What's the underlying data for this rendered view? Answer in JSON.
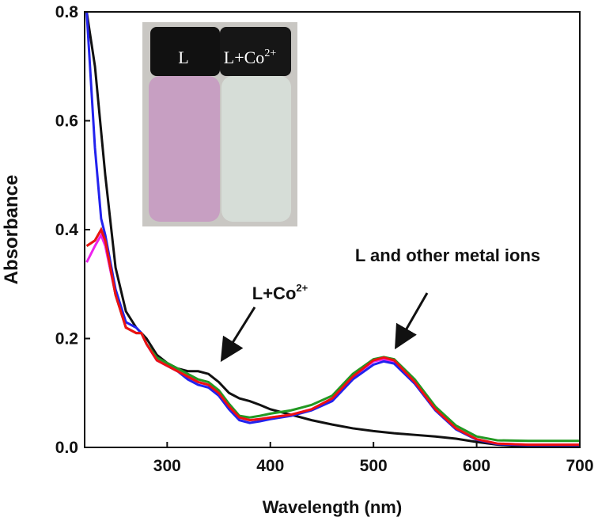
{
  "chart_data": {
    "type": "line",
    "xlabel": "Wavelength (nm)",
    "ylabel": "Absorbance",
    "xlim": [
      220,
      700
    ],
    "xticks": [
      300,
      400,
      500,
      600,
      700
    ],
    "ylim": [
      0,
      0.8
    ],
    "yticks": [
      {
        "value": 0,
        "label": "0.0"
      },
      0.2,
      0.4,
      0.6,
      0.8
    ],
    "x": [
      222,
      230,
      236,
      240,
      250,
      260,
      270,
      275,
      280,
      290,
      300,
      310,
      320,
      330,
      340,
      350,
      360,
      370,
      380,
      390,
      400,
      420,
      440,
      460,
      480,
      500,
      510,
      520,
      540,
      560,
      580,
      600,
      620,
      650,
      700
    ],
    "series": [
      {
        "color": "#111111",
        "values": [
          0.8,
          0.7,
          0.58,
          0.5,
          0.33,
          0.25,
          0.22,
          0.21,
          0.2,
          0.17,
          0.155,
          0.145,
          0.14,
          0.14,
          0.135,
          0.12,
          0.1,
          0.09,
          0.085,
          0.078,
          0.07,
          0.06,
          0.05,
          0.042,
          0.035,
          0.03,
          0.028,
          0.026,
          0.023,
          0.02,
          0.016,
          0.01,
          0.005,
          0.002,
          0.0
        ]
      },
      {
        "color": "#ee22ee",
        "values": [
          0.34,
          0.37,
          0.39,
          0.37,
          0.28,
          0.22,
          0.21,
          0.21,
          0.19,
          0.16,
          0.15,
          0.14,
          0.13,
          0.12,
          0.115,
          0.1,
          0.075,
          0.055,
          0.05,
          0.052,
          0.055,
          0.06,
          0.07,
          0.09,
          0.13,
          0.158,
          0.162,
          0.158,
          0.12,
          0.07,
          0.035,
          0.015,
          0.007,
          0.005,
          0.005
        ]
      },
      {
        "color": "#2222ee",
        "values": [
          0.8,
          0.55,
          0.42,
          0.39,
          0.29,
          0.23,
          0.22,
          0.21,
          0.19,
          0.16,
          0.15,
          0.14,
          0.125,
          0.115,
          0.11,
          0.095,
          0.07,
          0.05,
          0.045,
          0.048,
          0.052,
          0.058,
          0.068,
          0.085,
          0.125,
          0.152,
          0.158,
          0.154,
          0.117,
          0.068,
          0.033,
          0.014,
          0.006,
          0.004,
          0.004
        ]
      },
      {
        "color": "#229922",
        "values": [
          0.37,
          0.38,
          0.4,
          0.38,
          0.28,
          0.22,
          0.21,
          0.21,
          0.19,
          0.165,
          0.155,
          0.145,
          0.135,
          0.125,
          0.12,
          0.105,
          0.08,
          0.058,
          0.055,
          0.058,
          0.062,
          0.068,
          0.078,
          0.095,
          0.135,
          0.162,
          0.166,
          0.162,
          0.125,
          0.075,
          0.04,
          0.02,
          0.013,
          0.012,
          0.012
        ]
      },
      {
        "color": "#ee1111",
        "values": [
          0.37,
          0.38,
          0.4,
          0.38,
          0.28,
          0.22,
          0.21,
          0.21,
          0.19,
          0.16,
          0.15,
          0.14,
          0.13,
          0.12,
          0.115,
          0.1,
          0.075,
          0.055,
          0.05,
          0.052,
          0.055,
          0.06,
          0.07,
          0.09,
          0.13,
          0.16,
          0.165,
          0.16,
          0.12,
          0.07,
          0.035,
          0.015,
          0.007,
          0.005,
          0.005
        ]
      }
    ],
    "annotations": [
      {
        "text": "L+Co",
        "sup": "2+"
      },
      {
        "text": "L and other metal ions"
      }
    ],
    "inset_labels": [
      {
        "text": "L"
      },
      {
        "text": "L+Co",
        "sup": "2+"
      }
    ]
  }
}
